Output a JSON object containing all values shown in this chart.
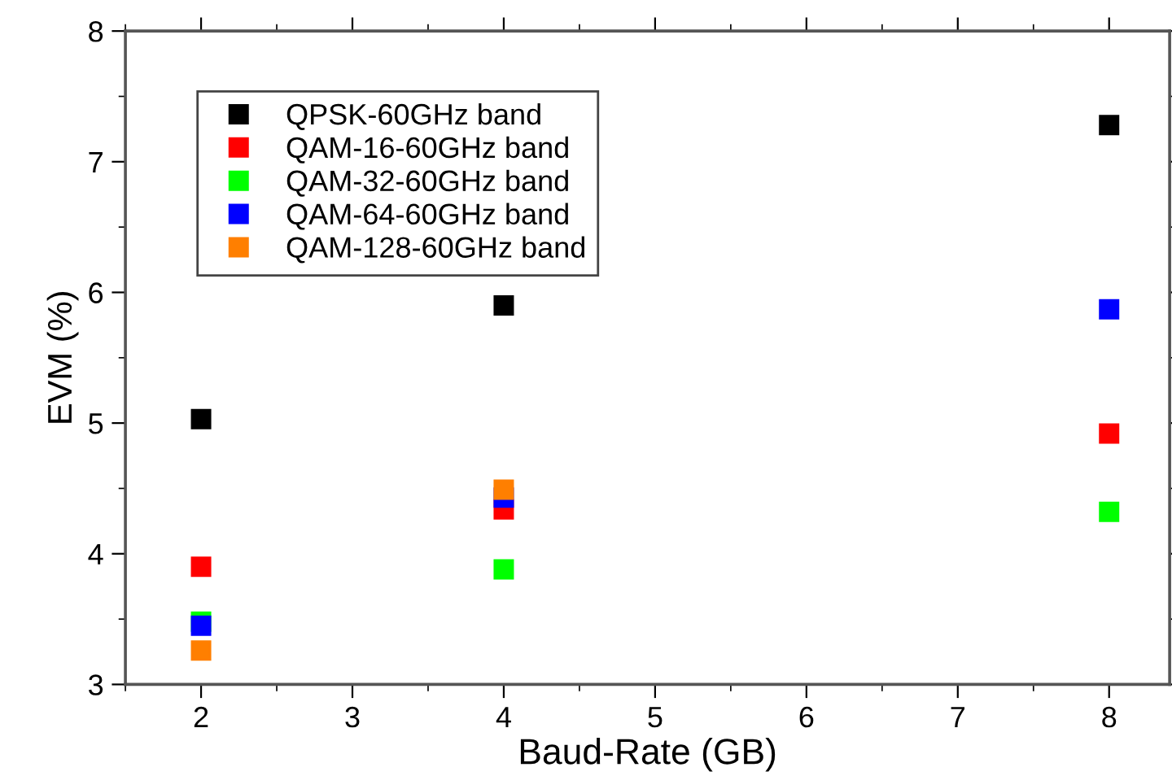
{
  "chart_data": {
    "type": "scatter",
    "xlabel": "Baud-Rate (GB)",
    "ylabel": "EVM (%)",
    "xlim": [
      1.5,
      8.4
    ],
    "xticks": [
      2,
      3,
      4,
      5,
      6,
      7,
      8
    ],
    "ylim": [
      3,
      8
    ],
    "yticks": [
      3,
      4,
      5,
      6,
      7,
      8
    ],
    "marker": "square",
    "legend": "top left",
    "grid": false,
    "series": [
      {
        "name": "QPSK-60GHz band",
        "color": "#000000",
        "x": [
          2,
          4,
          8
        ],
        "values": [
          5.03,
          5.9,
          7.28
        ]
      },
      {
        "name": "QAM-16-60GHz band",
        "color": "#ff0000",
        "x": [
          2,
          4,
          8
        ],
        "values": [
          3.9,
          4.34,
          4.92
        ]
      },
      {
        "name": "QAM-32-60GHz band",
        "color": "#00ff00",
        "x": [
          2,
          4,
          8
        ],
        "values": [
          3.48,
          3.88,
          4.32
        ]
      },
      {
        "name": "QAM-64-60GHz band",
        "color": "#0000ff",
        "x": [
          2,
          4,
          8
        ],
        "values": [
          3.45,
          4.43,
          5.87
        ]
      },
      {
        "name": "QAM-128-60GHz band",
        "color": "#ff7f00",
        "x": [
          2,
          4
        ],
        "values": [
          3.26,
          4.49
        ]
      }
    ]
  }
}
